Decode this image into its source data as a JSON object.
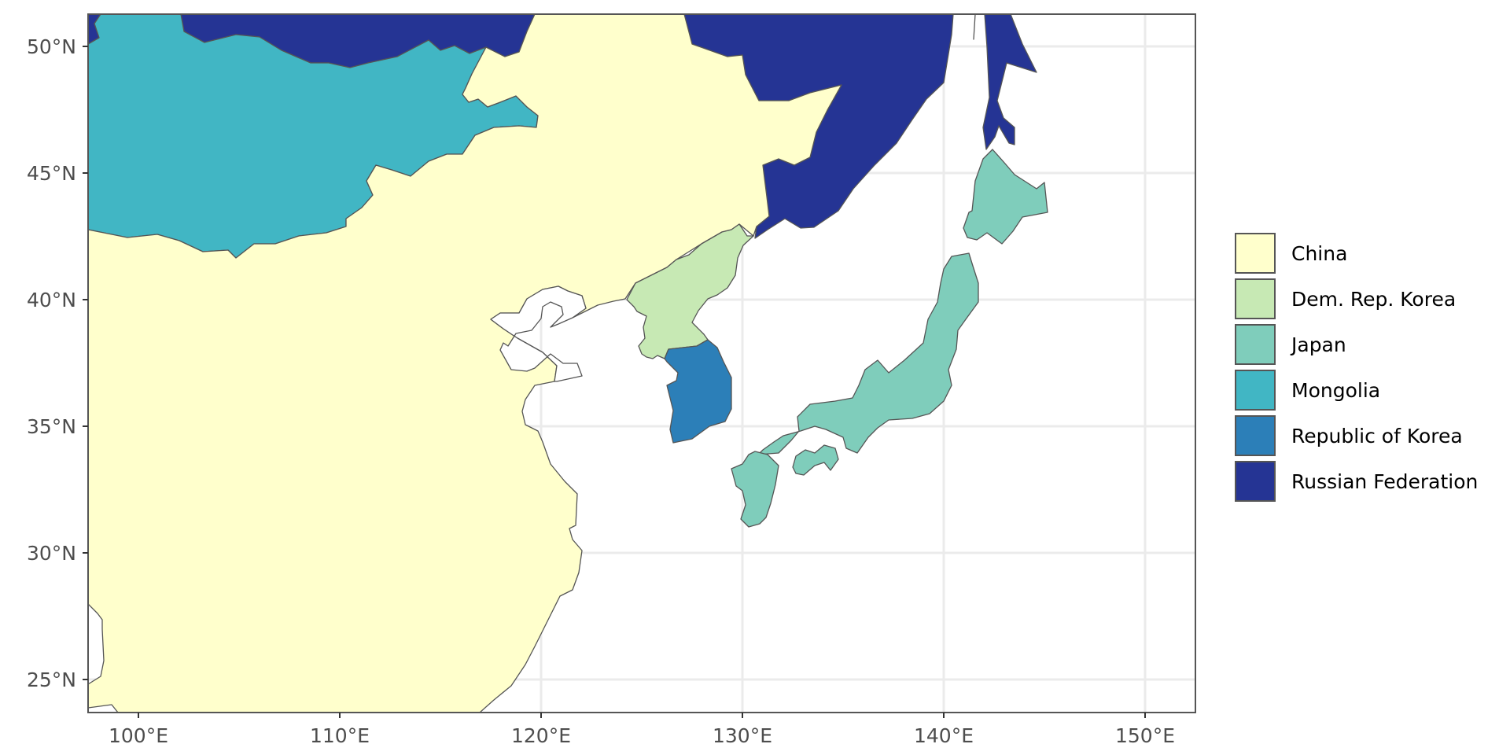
{
  "map": {
    "x_axis": {
      "ticks": [
        "100°E",
        "110°E",
        "120°E",
        "130°E",
        "140°E",
        "150°E"
      ]
    },
    "y_axis": {
      "ticks": [
        "25°N",
        "30°N",
        "35°N",
        "40°N",
        "45°N",
        "50°N"
      ]
    },
    "extent": {
      "lon": [
        97.5,
        152.5
      ],
      "lat": [
        23.8,
        51.3
      ]
    },
    "grid": true,
    "background": "#ffffff",
    "gridline_color": "#ebebeb",
    "border_color": "#555555"
  },
  "legend": {
    "placement": "right",
    "items": [
      {
        "label": "China",
        "color": "#ffffcc"
      },
      {
        "label": "Dem. Rep. Korea",
        "color": "#c7e9b4"
      },
      {
        "label": "Japan",
        "color": "#7fcdbb"
      },
      {
        "label": "Mongolia",
        "color": "#41b6c4"
      },
      {
        "label": "Republic of Korea",
        "color": "#2c7fb8"
      },
      {
        "label": "Russian Federation",
        "color": "#253494"
      }
    ]
  }
}
